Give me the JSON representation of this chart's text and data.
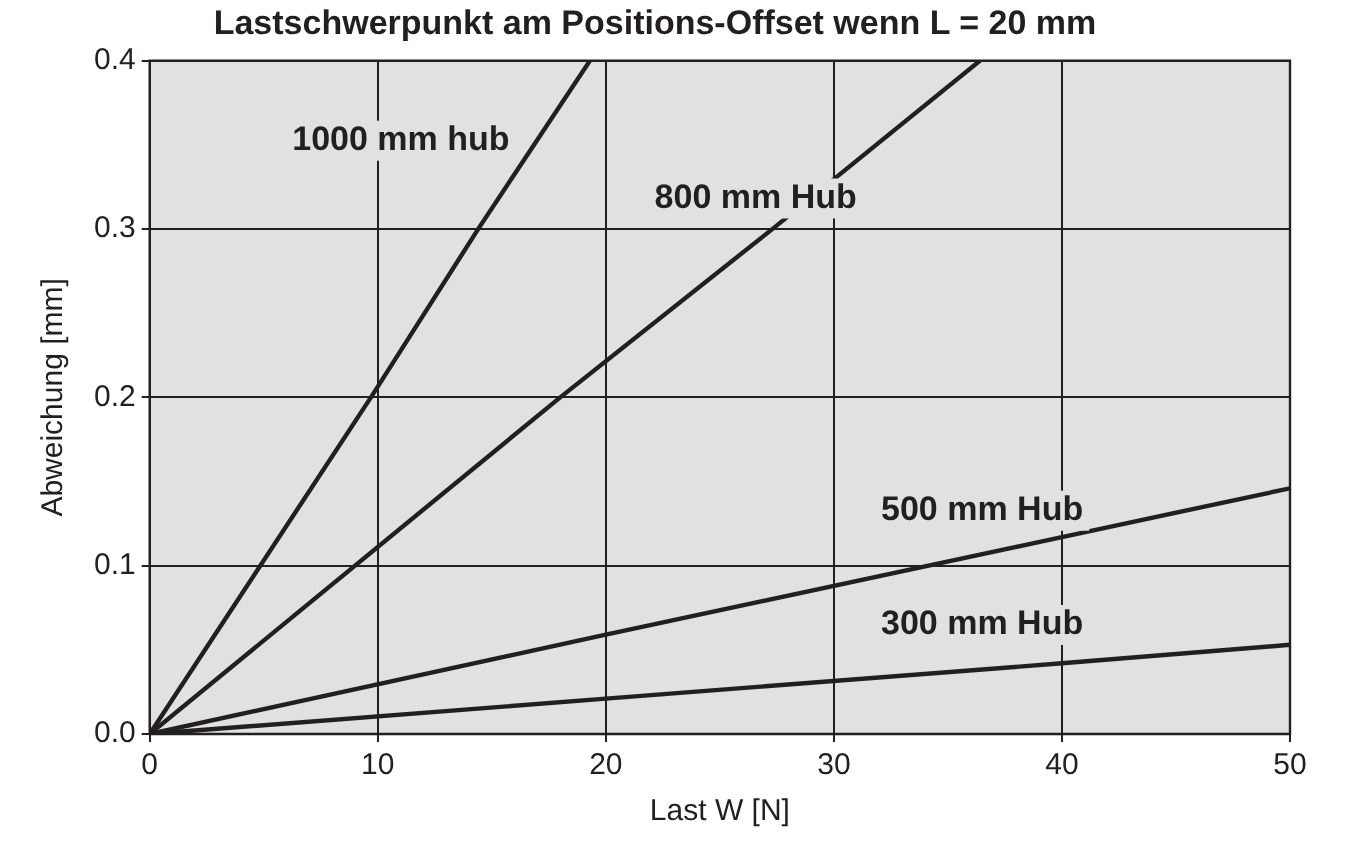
{
  "chart_data": {
    "type": "line",
    "title": "Lastschwerpunkt am Positions-Offset wenn L = 20 mm",
    "xlabel": "Last W [N]",
    "ylabel": "Abweichung [mm]",
    "xlim": [
      0,
      50
    ],
    "xticks": [
      0,
      10,
      20,
      30,
      40,
      50
    ],
    "ylim": [
      0,
      0.4
    ],
    "yticks": [
      {
        "value": 0,
        "label": "0.0"
      },
      {
        "value": 0.1,
        "label": "0.1"
      },
      {
        "value": 0.2,
        "label": "0.2"
      },
      {
        "value": 0.3,
        "label": "0.3"
      },
      {
        "value": 0.4,
        "label": "0.4"
      }
    ],
    "grid": true,
    "legend": false,
    "marker": "none",
    "line_style": "solid",
    "series": [
      {
        "name": "1000 mm hub",
        "color": "#231f20",
        "x": [
          0,
          9.7,
          14.4,
          19.3
        ],
        "values": [
          0,
          0.2,
          0.3,
          0.4
        ]
      },
      {
        "name": "800 mm Hub",
        "color": "#231f20",
        "x": [
          0,
          18,
          27.3,
          36.4
        ],
        "values": [
          0,
          0.2,
          0.3,
          0.4
        ]
      },
      {
        "name": "500 mm Hub",
        "color": "#231f20",
        "x": [
          0,
          20,
          40,
          50
        ],
        "values": [
          0,
          0.059,
          0.117,
          0.146
        ]
      },
      {
        "name": "300 mm Hub",
        "color": "#231f20",
        "x": [
          0,
          20,
          40,
          50
        ],
        "values": [
          0,
          0.021,
          0.042,
          0.053
        ]
      }
    ]
  }
}
